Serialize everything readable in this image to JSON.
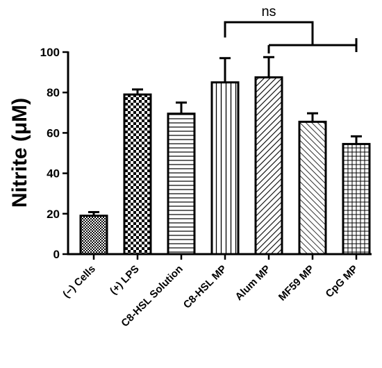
{
  "chart_data": {
    "type": "bar",
    "ylabel": "Nitrite (μM)",
    "xlabel": "",
    "ylim": [
      0,
      100
    ],
    "yticks": [
      "0",
      "20",
      "40",
      "60",
      "80",
      "100"
    ],
    "categories": [
      "(−) Cells",
      "(+) LPS",
      "C8-HSL Solution",
      "C8-HSL MP",
      "Alum MP",
      "MF59 MP",
      "CpG MP"
    ],
    "values": [
      19,
      79,
      69.5,
      85,
      87.5,
      65.5,
      54.5
    ],
    "errors": [
      1.8,
      2.5,
      5.5,
      12,
      10,
      4.2,
      3.8
    ],
    "patterns": [
      "small-checker",
      "large-checker",
      "horizontal-lines",
      "vertical-lines",
      "diagonal-forward",
      "diagonal-backward",
      "grid"
    ],
    "bar_color": "#000000",
    "background": "#ffffff",
    "grid": false,
    "annotations": [
      {
        "text": "ns",
        "type": "bracket",
        "from_category": "C8-HSL MP",
        "to_group": [
          "Alum MP",
          "CpG MP"
        ]
      }
    ]
  }
}
